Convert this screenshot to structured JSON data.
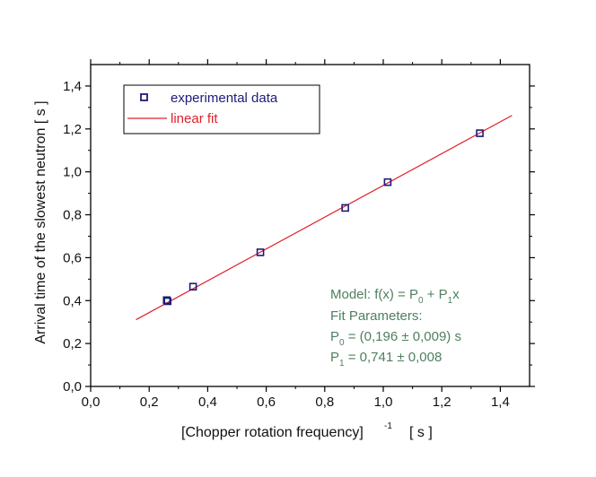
{
  "chart_data": {
    "type": "scatter",
    "xlabel": "[Chopper rotation frequency]",
    "xlabel_exponent": "-1",
    "xlabel_unit": "[ s ]",
    "ylabel": "Arrival time of the slowest neutron [ s ]",
    "xlim": [
      0.0,
      1.5
    ],
    "ylim": [
      0.0,
      1.5
    ],
    "xticks": [
      0.0,
      0.2,
      0.4,
      0.6,
      0.8,
      1.0,
      1.2,
      1.4
    ],
    "yticks": [
      0.0,
      0.2,
      0.4,
      0.6,
      0.8,
      1.0,
      1.2,
      1.4
    ],
    "xtick_labels": [
      "0,0",
      "0,2",
      "0,4",
      "0,6",
      "0,8",
      "1,0",
      "1,2",
      "1,4"
    ],
    "ytick_labels": [
      "0,0",
      "0,2",
      "0,4",
      "0,6",
      "0,8",
      "1,0",
      "1,2",
      "1,4"
    ],
    "grid": false,
    "legend_position": "top-left",
    "series": [
      {
        "name": "experimental data",
        "kind": "scatter",
        "marker": "square",
        "color": "#1c1c7a",
        "x": [
          0.26,
          0.263,
          0.35,
          0.58,
          0.87,
          1.015,
          1.33
        ],
        "y": [
          0.402,
          0.397,
          0.465,
          0.625,
          0.832,
          0.952,
          1.18
        ]
      },
      {
        "name": "linear fit",
        "kind": "line",
        "color": "#e0202a",
        "x": [
          0.155,
          1.44
        ],
        "y": [
          0.311,
          1.263
        ]
      }
    ],
    "annotation": {
      "color": "#4f7f5f",
      "model_label": "Model:  f(x) = P",
      "model_sub0": "0",
      "model_plus": " + P",
      "model_sub1": "1",
      "model_end": "x",
      "fit_title": "Fit Parameters:",
      "p0_name": "P",
      "p0_sub": "0",
      "p0_value": " =  (0,196  ± 0,009) s",
      "p1_name": "P",
      "p1_sub": "1",
      "p1_value": " =  0,741  ± 0,008"
    }
  }
}
